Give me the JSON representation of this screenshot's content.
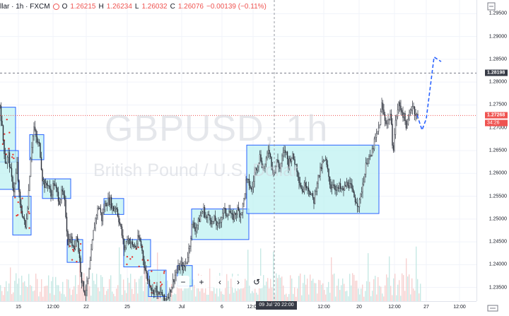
{
  "header": {
    "symbol": "llar · 1h · FXCM",
    "o_label": "O",
    "o": "1.26215",
    "h_label": "H",
    "h": "1.26234",
    "l_label": "L",
    "l": "1.26032",
    "c_label": "C",
    "c": "1.26076",
    "chg": "−0.00139 (−0.11%)"
  },
  "watermark": {
    "symbol": "GBPUSD, 1h",
    "description": "British Pound / U.S. Dollar"
  },
  "price_axis": {
    "ticks": [
      "1.29500",
      "1.29000",
      "1.28500",
      "1.28000",
      "1.27500",
      "1.27000",
      "1.26500",
      "1.26000",
      "1.25500",
      "1.25000",
      "1.24500",
      "1.24000",
      "1.23500"
    ],
    "crosshair_label": "1.28198",
    "last_price": "1.27268",
    "countdown": "34:26"
  },
  "time_axis": {
    "ticks": [
      "15",
      "12:00",
      "22",
      "25",
      "Jul",
      "6",
      "12:00",
      "12:00",
      "20",
      "12:00",
      "27",
      "12:00"
    ],
    "crosshair_label": "09 Jul '20  22:00"
  },
  "toolbar": {
    "zoom_out": "−",
    "zoom_in": "+",
    "scroll_left": "‹",
    "scroll_right": "›",
    "reset": "↺"
  },
  "colors": {
    "up": "#26a69a",
    "down": "#ef5350",
    "box_fill": "#bff2f2",
    "box_stroke": "#2962ff",
    "forecast": "#2962ff"
  },
  "chart_data": {
    "type": "candlestick",
    "symbol": "GBPUSD",
    "interval": "1h",
    "ylim": [
      1.232,
      1.298
    ],
    "price_lines": {
      "last": 1.27268,
      "crosshair": 1.28198
    },
    "close_path": [
      [
        0,
        1.275
      ],
      [
        4,
        1.268
      ],
      [
        8,
        1.262
      ],
      [
        12,
        1.264
      ],
      [
        16,
        1.259
      ],
      [
        20,
        1.256
      ],
      [
        24,
        1.262
      ],
      [
        28,
        1.253
      ],
      [
        32,
        1.251
      ],
      [
        36,
        1.248
      ],
      [
        40,
        1.255
      ],
      [
        44,
        1.265
      ],
      [
        48,
        1.27
      ],
      [
        52,
        1.267
      ],
      [
        56,
        1.266
      ],
      [
        60,
        1.259
      ],
      [
        64,
        1.257
      ],
      [
        68,
        1.258
      ],
      [
        72,
        1.255
      ],
      [
        76,
        1.258
      ],
      [
        80,
        1.256
      ],
      [
        84,
        1.254
      ],
      [
        88,
        1.256
      ],
      [
        92,
        1.253
      ],
      [
        96,
        1.245
      ],
      [
        100,
        1.246
      ],
      [
        104,
        1.243
      ],
      [
        108,
        1.247
      ],
      [
        112,
        1.242
      ],
      [
        116,
        1.236
      ],
      [
        120,
        1.234
      ],
      [
        124,
        1.236
      ],
      [
        128,
        1.241
      ],
      [
        132,
        1.247
      ],
      [
        136,
        1.251
      ],
      [
        140,
        1.253
      ],
      [
        144,
        1.25
      ],
      [
        148,
        1.253
      ],
      [
        152,
        1.254
      ],
      [
        156,
        1.254
      ],
      [
        160,
        1.252
      ],
      [
        164,
        1.253
      ],
      [
        168,
        1.25
      ],
      [
        172,
        1.247
      ],
      [
        176,
        1.243
      ],
      [
        180,
        1.246
      ],
      [
        184,
        1.245
      ],
      [
        188,
        1.244
      ],
      [
        192,
        1.244
      ],
      [
        196,
        1.246
      ],
      [
        200,
        1.244
      ],
      [
        204,
        1.24
      ],
      [
        208,
        1.237
      ],
      [
        212,
        1.236
      ],
      [
        216,
        1.234
      ],
      [
        220,
        1.235
      ],
      [
        224,
        1.233
      ],
      [
        228,
        1.234
      ],
      [
        232,
        1.232
      ],
      [
        236,
        1.233
      ],
      [
        240,
        1.234
      ],
      [
        244,
        1.236
      ],
      [
        248,
        1.238
      ],
      [
        252,
        1.239
      ],
      [
        256,
        1.24
      ],
      [
        260,
        1.239
      ],
      [
        264,
        1.241
      ],
      [
        268,
        1.244
      ],
      [
        272,
        1.249
      ],
      [
        276,
        1.248
      ],
      [
        280,
        1.249
      ],
      [
        284,
        1.251
      ],
      [
        288,
        1.252
      ],
      [
        292,
        1.25
      ],
      [
        296,
        1.251
      ],
      [
        300,
        1.249
      ],
      [
        304,
        1.25
      ],
      [
        308,
        1.248
      ],
      [
        312,
        1.25
      ],
      [
        316,
        1.252
      ],
      [
        320,
        1.251
      ],
      [
        324,
        1.252
      ],
      [
        328,
        1.25
      ],
      [
        332,
        1.251
      ],
      [
        336,
        1.252
      ],
      [
        340,
        1.251
      ],
      [
        344,
        1.253
      ],
      [
        348,
        1.258
      ],
      [
        352,
        1.258
      ],
      [
        356,
        1.256
      ],
      [
        360,
        1.26
      ],
      [
        364,
        1.262
      ],
      [
        368,
        1.264
      ],
      [
        372,
        1.261
      ],
      [
        376,
        1.262
      ],
      [
        380,
        1.266
      ],
      [
        384,
        1.262
      ],
      [
        388,
        1.26
      ],
      [
        392,
        1.263
      ],
      [
        396,
        1.261
      ],
      [
        400,
        1.264
      ],
      [
        404,
        1.265
      ],
      [
        408,
        1.262
      ],
      [
        412,
        1.264
      ],
      [
        416,
        1.263
      ],
      [
        420,
        1.261
      ],
      [
        424,
        1.258
      ],
      [
        428,
        1.256
      ],
      [
        432,
        1.258
      ],
      [
        436,
        1.257
      ],
      [
        440,
        1.255
      ],
      [
        444,
        1.254
      ],
      [
        448,
        1.258
      ],
      [
        452,
        1.26
      ],
      [
        456,
        1.262
      ],
      [
        460,
        1.263
      ],
      [
        464,
        1.26
      ],
      [
        468,
        1.257
      ],
      [
        472,
        1.258
      ],
      [
        476,
        1.256
      ],
      [
        480,
        1.257
      ],
      [
        484,
        1.256
      ],
      [
        488,
        1.257
      ],
      [
        492,
        1.258
      ],
      [
        496,
        1.257
      ],
      [
        500,
        1.255
      ],
      [
        504,
        1.254
      ],
      [
        508,
        1.253
      ],
      [
        512,
        1.257
      ],
      [
        516,
        1.26
      ],
      [
        520,
        1.264
      ],
      [
        524,
        1.263
      ],
      [
        528,
        1.266
      ],
      [
        532,
        1.268
      ],
      [
        536,
        1.27
      ],
      [
        540,
        1.275
      ],
      [
        544,
        1.272
      ],
      [
        548,
        1.271
      ],
      [
        552,
        1.273
      ],
      [
        556,
        1.265
      ],
      [
        560,
        1.272
      ],
      [
        564,
        1.275
      ],
      [
        568,
        1.274
      ],
      [
        572,
        1.272
      ],
      [
        576,
        1.27
      ],
      [
        580,
        1.274
      ],
      [
        584,
        1.275
      ],
      [
        588,
        1.273
      ],
      [
        592,
        1.272
      ]
    ],
    "boxes": [
      {
        "x": [
          -2,
          22
        ],
        "y": [
          1.2625,
          1.2745
        ]
      },
      {
        "x": [
          -2,
          26
        ],
        "y": [
          1.2565,
          1.265
        ]
      },
      {
        "x": [
          18,
          44
        ],
        "y": [
          1.2465,
          1.255
        ]
      },
      {
        "x": [
          42,
          62
        ],
        "y": [
          1.263,
          1.2685
        ]
      },
      {
        "x": [
          60,
          100
        ],
        "y": [
          1.2545,
          1.2588
        ]
      },
      {
        "x": [
          95,
          117
        ],
        "y": [
          1.2405,
          1.2455
        ]
      },
      {
        "x": [
          147,
          175
        ],
        "y": [
          1.251,
          1.2545
        ]
      },
      {
        "x": [
          175,
          213
        ],
        "y": [
          1.2395,
          1.2455
        ]
      },
      {
        "x": [
          210,
          235
        ],
        "y": [
          1.233,
          1.2388
        ]
      },
      {
        "x": [
          251,
          272
        ],
        "y": [
          1.2353,
          1.2398
        ]
      },
      {
        "x": [
          271,
          352
        ],
        "y": [
          1.2455,
          1.2522
        ]
      },
      {
        "x": [
          349,
          536
        ],
        "y": [
          1.2512,
          1.2662
        ]
      }
    ],
    "forecast": [
      [
        590,
        1.2728
      ],
      [
        597,
        1.2695
      ],
      [
        603,
        1.272
      ],
      [
        614,
        1.2855
      ],
      [
        624,
        1.2845
      ]
    ]
  }
}
